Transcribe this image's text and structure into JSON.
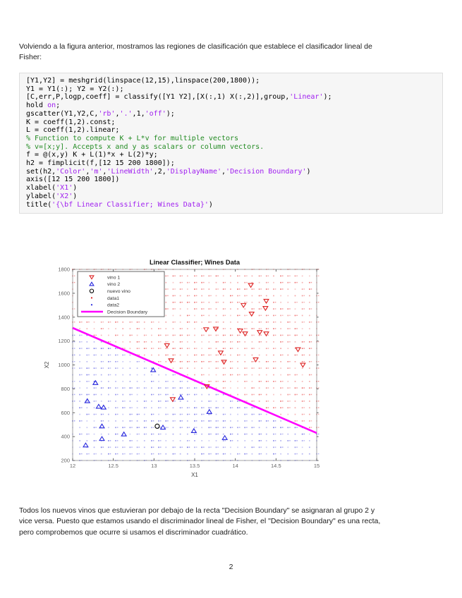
{
  "page": {
    "intro_text": "Volviendo a la figura anterior, mostramos las regiones de clasificación que establece el clasificador lineal de\nFisher:",
    "body_text": "Todos los nuevos vinos que estuvieran por debajo de la recta \"Decision Boundary\" se asignaran al grupo 2 y\nvice versa. Puesto que estamos usando el discriminador lineal de Fisher, el \"Decision Boundary\" es una recta,\npero comprobemos que ocurre si usamos el discriminador cuadrático.",
    "page_number": "2"
  },
  "code": {
    "lines": [
      [
        {
          "c": "p",
          "t": "[Y1,Y2] = meshgrid(linspace(12,15),linspace(200,1800));"
        }
      ],
      [
        {
          "c": "p",
          "t": "Y1 = Y1(:); Y2 = Y2(:);"
        }
      ],
      [
        {
          "c": "p",
          "t": "[C,err,P,logp,coeff] = classify([Y1 Y2],[X(:,1) X(:,2)],group,"
        },
        {
          "c": "s",
          "t": "'Linear'"
        },
        {
          "c": "p",
          "t": ");"
        }
      ],
      [
        {
          "c": "p",
          "t": "hold "
        },
        {
          "c": "s",
          "t": "on"
        },
        {
          "c": "p",
          "t": ";"
        }
      ],
      [
        {
          "c": "p",
          "t": "gscatter(Y1,Y2,C,"
        },
        {
          "c": "s",
          "t": "'rb'"
        },
        {
          "c": "p",
          "t": ","
        },
        {
          "c": "s",
          "t": "'.'"
        },
        {
          "c": "p",
          "t": ",1,"
        },
        {
          "c": "s",
          "t": "'off'"
        },
        {
          "c": "p",
          "t": ");"
        }
      ],
      [
        {
          "c": "p",
          "t": "K = coeff(1,2).const;"
        }
      ],
      [
        {
          "c": "p",
          "t": "L = coeff(1,2).linear;"
        }
      ],
      [
        {
          "c": "g",
          "t": "% Function to compute K + L*v for multiple vectors"
        }
      ],
      [
        {
          "c": "g",
          "t": "% v=[x;y]. Accepts x and y as scalars or column vectors."
        }
      ],
      [
        {
          "c": "p",
          "t": "f = @(x,y) K + L(1)*x + L(2)*y;"
        }
      ],
      [
        {
          "c": "p",
          "t": "h2 = fimplicit(f,[12 15 200 1800]);"
        }
      ],
      [
        {
          "c": "p",
          "t": "set(h2,"
        },
        {
          "c": "s",
          "t": "'Color'"
        },
        {
          "c": "p",
          "t": ","
        },
        {
          "c": "s",
          "t": "'m'"
        },
        {
          "c": "p",
          "t": ","
        },
        {
          "c": "s",
          "t": "'LineWidth'"
        },
        {
          "c": "p",
          "t": ",2,"
        },
        {
          "c": "s",
          "t": "'DisplayName'"
        },
        {
          "c": "p",
          "t": ","
        },
        {
          "c": "s",
          "t": "'Decision Boundary'"
        },
        {
          "c": "p",
          "t": ")"
        }
      ],
      [
        {
          "c": "p",
          "t": "axis([12 15 200 1800])"
        }
      ],
      [
        {
          "c": "p",
          "t": "xlabel("
        },
        {
          "c": "s",
          "t": "'X1'"
        },
        {
          "c": "p",
          "t": ")"
        }
      ],
      [
        {
          "c": "p",
          "t": "ylabel("
        },
        {
          "c": "s",
          "t": "'X2'"
        },
        {
          "c": "p",
          "t": ")"
        }
      ],
      [
        {
          "c": "p",
          "t": "title("
        },
        {
          "c": "s",
          "t": "'{\\bf Linear Classifier; Wines Data}'"
        },
        {
          "c": "p",
          "t": ")"
        }
      ]
    ]
  },
  "chart_data": {
    "type": "scatter",
    "title": "Linear Classifier; Wines Data",
    "xlabel": "X1",
    "ylabel": "X2",
    "xlim": [
      12,
      15
    ],
    "ylim": [
      200,
      1800
    ],
    "xticks": [
      "12",
      "12.5",
      "13",
      "13.5",
      "14",
      "14.5",
      "15"
    ],
    "xtick_values": [
      12,
      12.5,
      13,
      13.5,
      14,
      14.5,
      15
    ],
    "yticks": [
      "200",
      "400",
      "600",
      "800",
      "1000",
      "1200",
      "1400",
      "1600",
      "1800"
    ],
    "ytick_values": [
      200,
      400,
      600,
      800,
      1000,
      1200,
      1400,
      1600,
      1800
    ],
    "grid": false,
    "legend_position": "top-left",
    "colors": {
      "vino1": "#dd2222",
      "vino2": "#2424dd",
      "nuevo_vino": "#000000",
      "boundary": "#ff00ff",
      "region_above": "#e84545",
      "region_below": "#5353e0"
    },
    "legend": [
      {
        "label": "vino 1",
        "marker": "triangle-down",
        "color": "#dd2222"
      },
      {
        "label": "vino 2",
        "marker": "triangle-up",
        "color": "#2424dd"
      },
      {
        "label": "nuevo vino",
        "marker": "circle",
        "color": "#000000"
      },
      {
        "label": "data1",
        "marker": "dot",
        "color": "#dd2222"
      },
      {
        "label": "data2",
        "marker": "dot",
        "color": "#2424dd"
      },
      {
        "label": "Decision Boundary",
        "marker": "line",
        "color": "#ff00ff"
      }
    ],
    "series": [
      {
        "name": "vino 1",
        "marker": "triangle-down",
        "color": "#dd2222",
        "points": [
          [
            14.19,
            1668
          ],
          [
            14.38,
            1535
          ],
          [
            14.1,
            1500
          ],
          [
            14.37,
            1475
          ],
          [
            14.2,
            1428
          ],
          [
            13.64,
            1297
          ],
          [
            13.76,
            1302
          ],
          [
            14.06,
            1286
          ],
          [
            14.12,
            1262
          ],
          [
            14.3,
            1274
          ],
          [
            14.38,
            1262
          ],
          [
            13.16,
            1163
          ],
          [
            13.82,
            1102
          ],
          [
            14.77,
            1130
          ],
          [
            13.21,
            1037
          ],
          [
            13.86,
            1025
          ],
          [
            14.25,
            1045
          ],
          [
            14.83,
            1000
          ],
          [
            13.65,
            820
          ],
          [
            13.23,
            712
          ]
        ]
      },
      {
        "name": "vino 2",
        "marker": "triangle-up",
        "color": "#2424dd",
        "points": [
          [
            12.99,
            958
          ],
          [
            12.28,
            850
          ],
          [
            12.18,
            698
          ],
          [
            12.32,
            652
          ],
          [
            12.38,
            645
          ],
          [
            13.33,
            728
          ],
          [
            13.68,
            608
          ],
          [
            12.36,
            487
          ],
          [
            13.11,
            477
          ],
          [
            12.63,
            420
          ],
          [
            12.36,
            382
          ],
          [
            12.16,
            328
          ],
          [
            13.87,
            390
          ],
          [
            13.49,
            448
          ]
        ]
      },
      {
        "name": "nuevo vino",
        "marker": "circle",
        "color": "#000000",
        "points": [
          [
            13.04,
            487
          ]
        ]
      }
    ],
    "boundary_line": {
      "name": "Decision Boundary",
      "color": "#ff00ff",
      "width": 2.6,
      "points": [
        [
          12,
          1310
        ],
        [
          15,
          430
        ]
      ]
    },
    "region_dots": {
      "nx": 35,
      "ny": 30,
      "dot_size": 1.7,
      "above_color": "#e84545",
      "below_color": "#5353e0"
    }
  }
}
